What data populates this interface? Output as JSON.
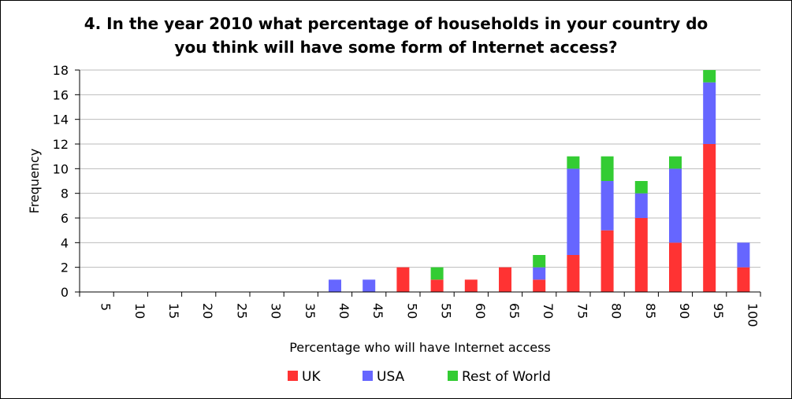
{
  "chart_data": {
    "type": "bar",
    "stacked": true,
    "title_line1": "4. In the year 2010 what percentage of households in your country do",
    "title_line2": "you think will have some form of Internet access?",
    "xlabel": "Percentage who will have Internet access",
    "ylabel": "Frequency",
    "ylim": [
      0,
      18
    ],
    "yticks": [
      0,
      2,
      4,
      6,
      8,
      10,
      12,
      14,
      16,
      18
    ],
    "grid": true,
    "legend_position": "bottom",
    "categories": [
      "5",
      "10",
      "15",
      "20",
      "25",
      "30",
      "35",
      "40",
      "45",
      "50",
      "55",
      "60",
      "65",
      "70",
      "75",
      "80",
      "85",
      "90",
      "95",
      "100"
    ],
    "series": [
      {
        "name": "UK",
        "color": "#ff3333",
        "values": [
          0,
          0,
          0,
          0,
          0,
          0,
          0,
          0,
          0,
          2,
          1,
          1,
          2,
          1,
          3,
          5,
          6,
          4,
          12,
          2
        ]
      },
      {
        "name": "USA",
        "color": "#6666ff",
        "values": [
          0,
          0,
          0,
          0,
          0,
          0,
          0,
          1,
          1,
          0,
          0,
          0,
          0,
          1,
          7,
          4,
          2,
          6,
          5,
          2
        ]
      },
      {
        "name": "Rest of World",
        "color": "#33cc33",
        "values": [
          0,
          0,
          0,
          0,
          0,
          0,
          0,
          0,
          0,
          0,
          1,
          0,
          0,
          1,
          1,
          2,
          1,
          1,
          1,
          0
        ]
      }
    ]
  }
}
